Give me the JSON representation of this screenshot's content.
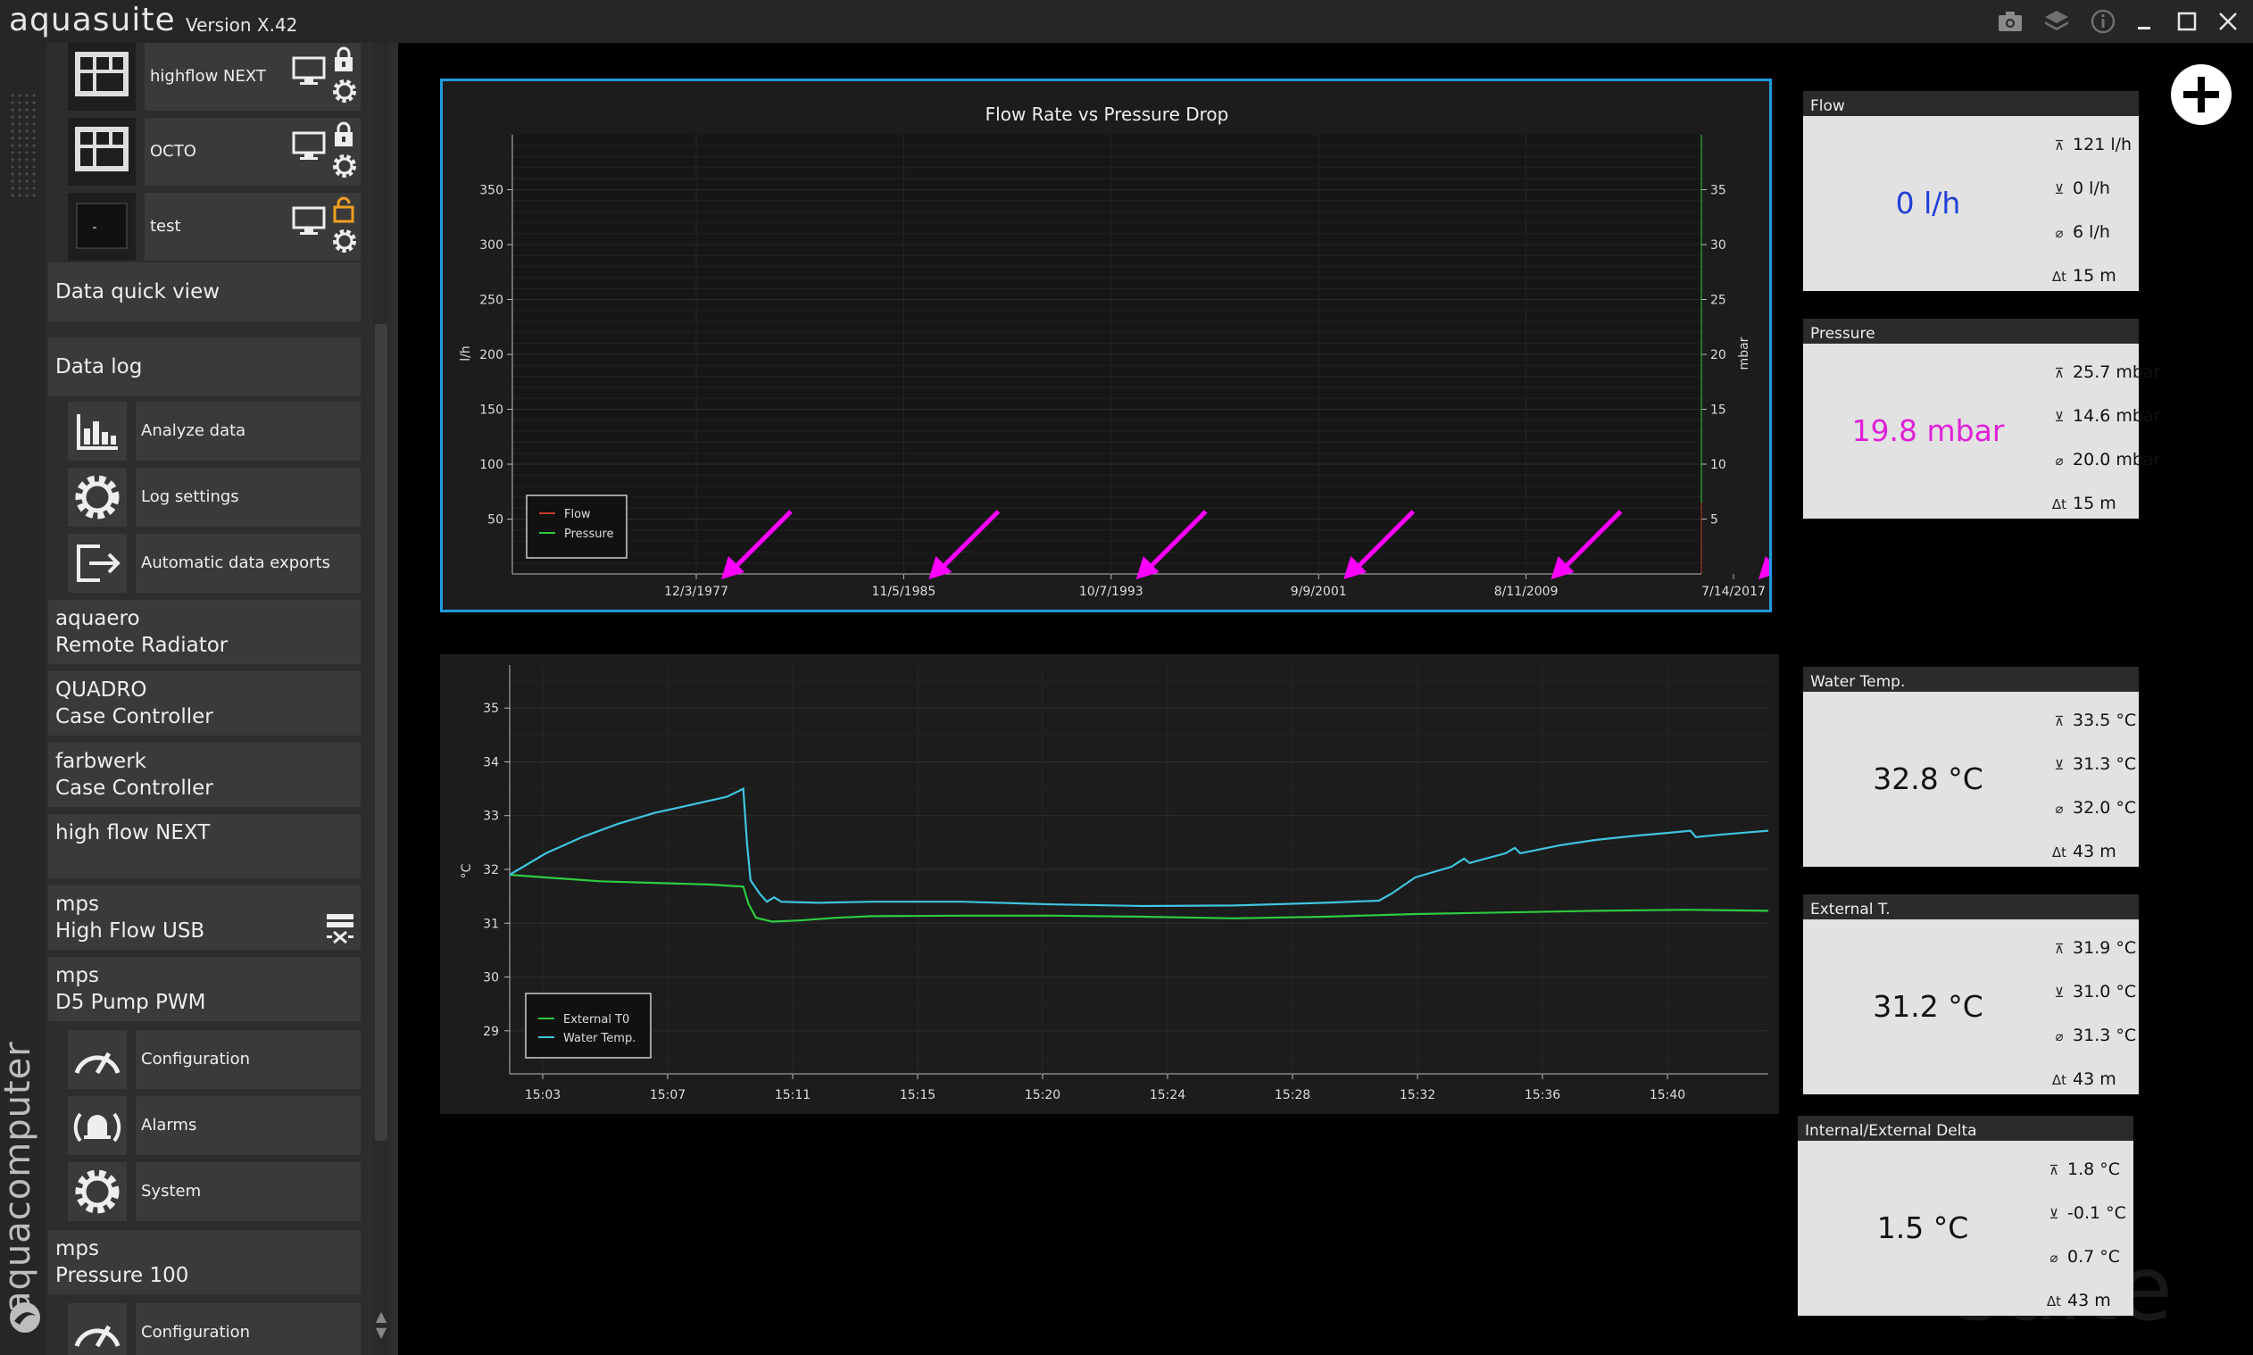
{
  "titlebar": {
    "app_name": "aquasuite",
    "version": "Version X.42",
    "icons": [
      "camera-icon",
      "layers-icon",
      "info-icon",
      "minimize-icon",
      "maximize-icon",
      "close-icon"
    ]
  },
  "sidebar": {
    "brand": "aquacomputer",
    "devices": [
      {
        "label": "highflow NEXT",
        "lock": "locked"
      },
      {
        "label": "OCTO",
        "lock": "locked"
      },
      {
        "label": "test",
        "lock": "unlocked"
      }
    ],
    "items": {
      "data_quick_view": "Data quick view",
      "data_log": "Data log",
      "analyze_data": "Analyze data",
      "log_settings": "Log settings",
      "automatic_data_exports": "Automatic data exports",
      "aquaero": [
        "aquaero",
        "Remote Radiator"
      ],
      "quadro": [
        "QUADRO",
        "Case Controller"
      ],
      "farbwerk": [
        "farbwerk",
        "Case Controller"
      ],
      "highflow": "high flow NEXT",
      "mps_usb": [
        "mps",
        "High Flow USB"
      ],
      "mps_d5": [
        "mps",
        "D5 Pump PWM"
      ],
      "configuration": "Configuration",
      "alarms": "Alarms",
      "system": "System",
      "mps_pressure": [
        "mps",
        "Pressure 100"
      ],
      "configuration2": "Configuration"
    }
  },
  "charts": {
    "colors": {
      "flow": "#c0392b",
      "pressure": "#2ecc40",
      "water": "#40c4e0",
      "external": "#2ecc40",
      "arrow": "#ff00ff",
      "frame": "#1e9be0"
    }
  },
  "chart_data": [
    {
      "type": "line",
      "title": "Flow Rate vs Pressure Drop",
      "ylabel": "l/h",
      "y2label": "mbar",
      "x_ticks": [
        "12/3/1977",
        "11/5/1985",
        "10/7/1993",
        "9/9/2001",
        "8/11/2009",
        "7/14/2017"
      ],
      "y_ticks": [
        50,
        100,
        150,
        200,
        250,
        300,
        350
      ],
      "y2_ticks": [
        5,
        10,
        15,
        20,
        25,
        30,
        35
      ],
      "ylim": [
        0,
        400
      ],
      "y2lim": [
        0,
        40
      ],
      "series": [
        {
          "name": "Flow",
          "values": []
        },
        {
          "name": "Pressure",
          "values": []
        }
      ],
      "annotations": "magenta arrows pointing to each x tick label",
      "legend": "bottom-left"
    },
    {
      "type": "line",
      "ylabel": "°C",
      "x_ticks": [
        "15:03",
        "15:07",
        "15:11",
        "15:15",
        "15:20",
        "15:24",
        "15:28",
        "15:32",
        "15:36",
        "15:40"
      ],
      "y_ticks": [
        29,
        30,
        31,
        32,
        33,
        34,
        35
      ],
      "ylim": [
        28.2,
        35.8
      ],
      "xlim": [
        15.0,
        15.695
      ],
      "legend": "bottom-left",
      "series": [
        {
          "name": "External T0",
          "points": [
            [
              15.0,
              31.9
            ],
            [
              15.02,
              31.85
            ],
            [
              15.05,
              31.78
            ],
            [
              15.08,
              31.75
            ],
            [
              15.11,
              31.72
            ],
            [
              15.129,
              31.68
            ],
            [
              15.132,
              31.35
            ],
            [
              15.136,
              31.1
            ],
            [
              15.145,
              31.03
            ],
            [
              15.16,
              31.05
            ],
            [
              15.18,
              31.1
            ],
            [
              15.2,
              31.13
            ],
            [
              15.25,
              31.14
            ],
            [
              15.3,
              31.14
            ],
            [
              15.35,
              31.12
            ],
            [
              15.4,
              31.09
            ],
            [
              15.45,
              31.12
            ],
            [
              15.5,
              31.17
            ],
            [
              15.55,
              31.2
            ],
            [
              15.6,
              31.23
            ],
            [
              15.65,
              31.25
            ],
            [
              15.695,
              31.23
            ]
          ]
        },
        {
          "name": "Water Temp.",
          "points": [
            [
              15.0,
              31.9
            ],
            [
              15.02,
              32.3
            ],
            [
              15.04,
              32.6
            ],
            [
              15.06,
              32.85
            ],
            [
              15.08,
              33.05
            ],
            [
              15.1,
              33.2
            ],
            [
              15.12,
              33.35
            ],
            [
              15.129,
              33.5
            ],
            [
              15.131,
              32.5
            ],
            [
              15.133,
              31.8
            ],
            [
              15.138,
              31.55
            ],
            [
              15.142,
              31.4
            ],
            [
              15.146,
              31.48
            ],
            [
              15.15,
              31.4
            ],
            [
              15.17,
              31.38
            ],
            [
              15.2,
              31.4
            ],
            [
              15.25,
              31.4
            ],
            [
              15.3,
              31.35
            ],
            [
              15.35,
              31.32
            ],
            [
              15.4,
              31.33
            ],
            [
              15.45,
              31.38
            ],
            [
              15.48,
              31.42
            ],
            [
              15.487,
              31.55
            ],
            [
              15.5,
              31.85
            ],
            [
              15.52,
              32.05
            ],
            [
              15.527,
              32.2
            ],
            [
              15.53,
              32.12
            ],
            [
              15.55,
              32.3
            ],
            [
              15.555,
              32.4
            ],
            [
              15.558,
              32.3
            ],
            [
              15.58,
              32.45
            ],
            [
              15.6,
              32.55
            ],
            [
              15.62,
              32.62
            ],
            [
              15.64,
              32.68
            ],
            [
              15.652,
              32.72
            ],
            [
              15.655,
              32.6
            ],
            [
              15.67,
              32.65
            ],
            [
              15.695,
              32.72
            ]
          ]
        }
      ]
    }
  ],
  "tiles": [
    {
      "title": "Flow",
      "value": "0 l/h",
      "value_color": "#1f3fd6",
      "max": "121 l/h",
      "min": "0 l/h",
      "avg": "6 l/h",
      "time": "15 m"
    },
    {
      "title": "Pressure",
      "value": "19.8 mbar",
      "value_color": "#e020d8",
      "max": "25.7 mbar",
      "min": "14.6 mbar",
      "avg": "20.0 mbar",
      "time": "15 m"
    },
    {
      "title": "Water Temp.",
      "value": "32.8 °C",
      "value_color": "#111111",
      "max": "33.5 °C",
      "min": "31.3 °C",
      "avg": "32.0 °C",
      "time": "43 m"
    },
    {
      "title": "External T.",
      "value": "31.2 °C",
      "value_color": "#111111",
      "max": "31.9 °C",
      "min": "31.0 °C",
      "avg": "31.3 °C",
      "time": "43 m"
    },
    {
      "title": "Internal/External Delta",
      "value": "1.5 °C",
      "value_color": "#111111",
      "max": "1.8 °C",
      "min": "-0.1 °C",
      "avg": "0.7 °C",
      "time": "43 m"
    }
  ],
  "watermark": "suite"
}
